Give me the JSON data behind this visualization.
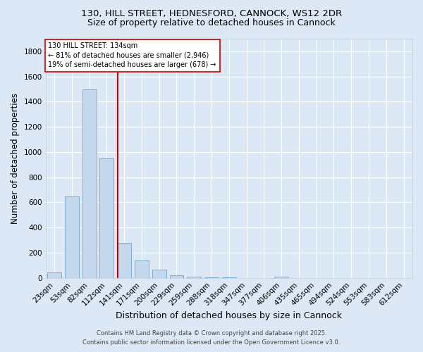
{
  "title_line1": "130, HILL STREET, HEDNESFORD, CANNOCK, WS12 2DR",
  "title_line2": "Size of property relative to detached houses in Cannock",
  "xlabel": "Distribution of detached houses by size in Cannock",
  "ylabel": "Number of detached properties",
  "bar_labels": [
    "23sqm",
    "53sqm",
    "82sqm",
    "112sqm",
    "141sqm",
    "171sqm",
    "200sqm",
    "229sqm",
    "259sqm",
    "288sqm",
    "318sqm",
    "347sqm",
    "377sqm",
    "406sqm",
    "435sqm",
    "465sqm",
    "494sqm",
    "524sqm",
    "553sqm",
    "583sqm",
    "612sqm"
  ],
  "bar_values": [
    45,
    650,
    1500,
    950,
    280,
    140,
    65,
    20,
    8,
    3,
    2,
    1,
    1,
    8,
    0,
    0,
    0,
    0,
    0,
    0,
    0
  ],
  "bar_color": "#c5d9ee",
  "bar_edge_color": "#7aadd4",
  "vline_color": "#cc0000",
  "annotation_text": "130 HILL STREET: 134sqm\n← 81% of detached houses are smaller (2,946)\n19% of semi-detached houses are larger (678) →",
  "annotation_box_color": "white",
  "annotation_box_edge": "#cc0000",
  "ylim": [
    0,
    1900
  ],
  "yticks": [
    0,
    200,
    400,
    600,
    800,
    1000,
    1200,
    1400,
    1600,
    1800
  ],
  "background_color": "#dce8f5",
  "plot_background": "#dce8f5",
  "grid_color": "white",
  "footer_line1": "Contains HM Land Registry data © Crown copyright and database right 2025.",
  "footer_line2": "Contains public sector information licensed under the Open Government Licence v3.0.",
  "title_fontsize": 9.5,
  "subtitle_fontsize": 9,
  "xlabel_fontsize": 9,
  "ylabel_fontsize": 8.5,
  "tick_fontsize": 7.5,
  "annot_fontsize": 7,
  "footer_fontsize": 6,
  "vline_x_data": 3.62
}
